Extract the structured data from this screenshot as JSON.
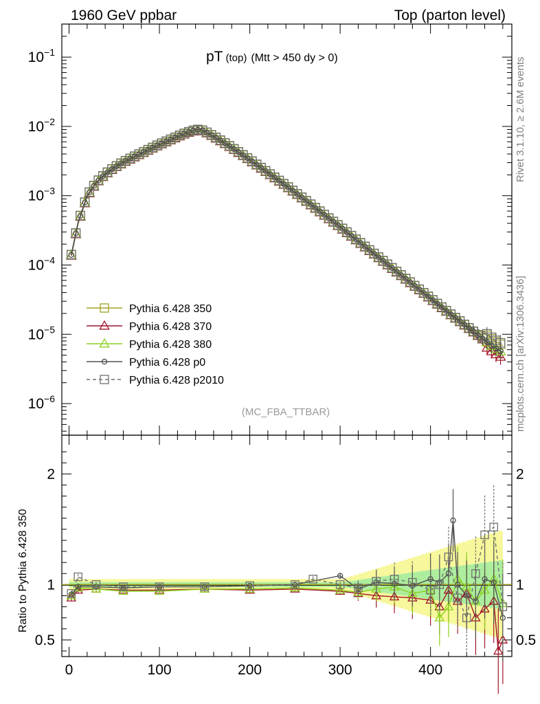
{
  "header": {
    "left": "1960 GeV ppbar",
    "right": "Top (parton level)"
  },
  "side_labels": {
    "rivet": "Rivet 3.1.10, ≥ 2.6M events",
    "mcplots": "mcplots.cern.ch [arXiv:1306.3436]"
  },
  "chart_data": [
    {
      "type": "line",
      "panel": "main",
      "title_main": "pT",
      "title_small": "(top)",
      "title_rest": "(Mtt > 450 dy > 0)",
      "watermark": "(MC_FBA_TTBAR)",
      "yscale": "log",
      "xlim": [
        -8,
        490
      ],
      "ylim": [
        3.5e-07,
        0.3
      ],
      "y_ticks": [
        {
          "mant": "10",
          "exp": "−1",
          "value": 0.1
        },
        {
          "mant": "10",
          "exp": "−2",
          "value": 0.01
        },
        {
          "mant": "10",
          "exp": "−3",
          "value": 0.001
        },
        {
          "mant": "10",
          "exp": "−4",
          "value": 0.0001
        },
        {
          "mant": "10",
          "exp": "−5",
          "value": 1e-05
        },
        {
          "mant": "10",
          "exp": "−6",
          "value": 1e-06
        }
      ],
      "legend": {
        "placement": "lower-left",
        "entries": [
          {
            "label": "Pythia 6.428 350",
            "color": "#a0a020",
            "marker": "square-open",
            "dashed": false
          },
          {
            "label": "Pythia 6.428 370",
            "color": "#a01428",
            "marker": "triangle-open",
            "dashed": false
          },
          {
            "label": "Pythia 6.428 380",
            "color": "#8cd21e",
            "marker": "triangle-open",
            "dashed": false
          },
          {
            "label": "Pythia 6.428 p0",
            "color": "#505050",
            "marker": "circle-open",
            "dashed": false
          },
          {
            "label": "Pythia 6.428 p2010",
            "color": "#707070",
            "marker": "square-open",
            "dashed": true
          }
        ]
      },
      "series": [
        {
          "name": "Pythia 6.428 p0",
          "x": [
            2.5,
            10,
            20,
            30,
            40,
            50,
            60,
            70,
            80,
            90,
            100,
            110,
            120,
            130,
            140,
            145,
            150,
            160,
            170,
            180,
            190,
            200,
            220,
            240,
            260,
            280,
            300,
            320,
            340,
            360,
            380,
            400,
            420,
            440,
            460,
            470,
            480
          ],
          "y": [
            0.00014,
            0.00041,
            0.001,
            0.00155,
            0.00205,
            0.00255,
            0.00305,
            0.00355,
            0.0041,
            0.00475,
            0.0055,
            0.00625,
            0.00715,
            0.0081,
            0.0089,
            0.009,
            0.0085,
            0.0072,
            0.006,
            0.00495,
            0.00405,
            0.0033,
            0.00215,
            0.0014,
            0.00089,
            0.00056,
            0.000355,
            0.00022,
            0.000137,
            8.5e-05,
            5.3e-05,
            3.3e-05,
            2.05e-05,
            1.3e-05,
            8.2e-06,
            6.5e-06,
            5.5e-06
          ]
        }
      ]
    },
    {
      "type": "line",
      "panel": "ratio",
      "ylabel": "Ratio to Pythia 6.428 350",
      "xlim": [
        -8,
        490
      ],
      "ylim": [
        0.35,
        2.35
      ],
      "x_ticks": [
        "0",
        "100",
        "200",
        "300",
        "400"
      ],
      "y_ticks": [
        "0.5",
        "1",
        "2"
      ],
      "series": [
        {
          "name": "Pythia 6.428 370",
          "x": [
            2.5,
            10,
            30,
            60,
            100,
            150,
            200,
            250,
            300,
            320,
            340,
            360,
            380,
            400,
            410,
            420,
            430,
            440,
            450,
            460,
            470,
            475,
            480
          ],
          "y": [
            0.88,
            0.95,
            0.96,
            0.95,
            0.95,
            0.96,
            0.95,
            0.96,
            0.94,
            0.92,
            0.9,
            0.89,
            0.88,
            0.86,
            0.8,
            0.95,
            0.85,
            0.92,
            0.7,
            0.78,
            0.85,
            0.4,
            0.5
          ]
        },
        {
          "name": "Pythia 6.428 380",
          "x": [
            2.5,
            10,
            30,
            60,
            100,
            150,
            200,
            250,
            300,
            320,
            340,
            360,
            380,
            400,
            410,
            420,
            430,
            440,
            450,
            460,
            470,
            480
          ],
          "y": [
            0.9,
            0.97,
            0.96,
            0.94,
            0.94,
            0.96,
            0.96,
            0.97,
            0.95,
            0.93,
            0.96,
            0.98,
            0.92,
            0.95,
            0.7,
            0.8,
            1.05,
            0.98,
            0.85,
            0.95,
            1.05,
            0.83
          ]
        },
        {
          "name": "Pythia 6.428 p0",
          "x": [
            2.5,
            10,
            30,
            60,
            100,
            150,
            200,
            250,
            300,
            320,
            340,
            360,
            380,
            400,
            410,
            420,
            425,
            430,
            440,
            450,
            460,
            470,
            480
          ],
          "y": [
            0.91,
            0.98,
            0.98,
            0.97,
            0.98,
            0.98,
            0.99,
            1.0,
            1.08,
            0.96,
            1.02,
            1.01,
            0.99,
            1.05,
            1.02,
            1.1,
            1.58,
            1.0,
            0.9,
            0.85,
            1.05,
            1.02,
            0.7
          ]
        },
        {
          "name": "Pythia 6.428 p2010",
          "x": [
            2.5,
            10,
            30,
            60,
            100,
            150,
            200,
            250,
            270,
            300,
            320,
            340,
            360,
            380,
            400,
            410,
            420,
            430,
            440,
            450,
            460,
            470,
            480
          ],
          "y": [
            0.92,
            1.07,
            1.0,
            0.98,
            0.98,
            0.98,
            0.99,
            1.0,
            1.05,
            1.0,
            0.97,
            1.03,
            1.05,
            1.02,
            0.95,
            1.0,
            1.25,
            0.88,
            0.7,
            1.1,
            1.45,
            1.52,
            0.8
          ]
        }
      ]
    }
  ]
}
